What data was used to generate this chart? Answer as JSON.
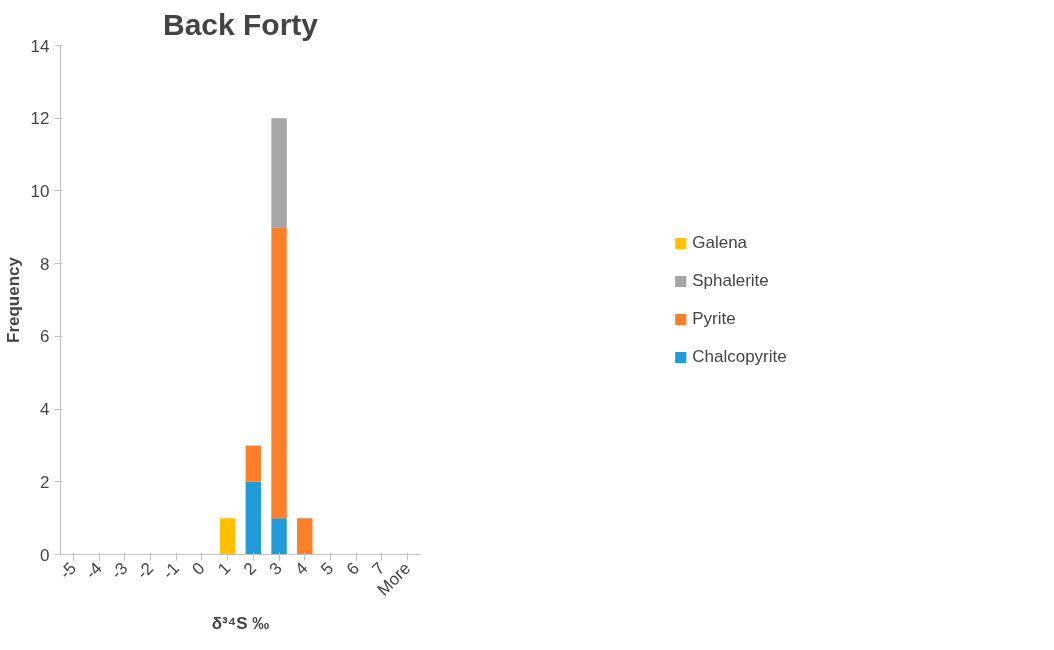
{
  "chart_data": {
    "type": "bar",
    "title": "Back Forty",
    "xlabel": "δ³⁴S ‰",
    "ylabel": "Frequency",
    "categories": [
      "-5",
      "-4",
      "-3",
      "-2",
      "-1",
      "0",
      "1",
      "2",
      "3",
      "4",
      "5",
      "6",
      "7",
      "More"
    ],
    "stacked": true,
    "ylim": [
      0,
      14
    ],
    "yticks": [
      0,
      2,
      4,
      6,
      8,
      10,
      12,
      14
    ],
    "grid": false,
    "legend": "right",
    "series": [
      {
        "name": "Chalcopyrite",
        "color": "#1f9bd7",
        "values": [
          0,
          0,
          0,
          0,
          0,
          0,
          0,
          2,
          1,
          0,
          0,
          0,
          0,
          0
        ]
      },
      {
        "name": "Pyrite",
        "color": "#fd7f2a",
        "values": [
          0,
          0,
          0,
          0,
          0,
          0,
          0,
          1,
          8,
          1,
          0,
          0,
          0,
          0
        ]
      },
      {
        "name": "Sphalerite",
        "color": "#a5a5a5",
        "values": [
          0,
          0,
          0,
          0,
          0,
          0,
          0,
          0,
          3,
          0,
          0,
          0,
          0,
          0
        ]
      },
      {
        "name": "Galena",
        "color": "#ffc000",
        "values": [
          0,
          0,
          0,
          0,
          0,
          0,
          1,
          0,
          0,
          0,
          0,
          0,
          0,
          0
        ]
      }
    ]
  }
}
